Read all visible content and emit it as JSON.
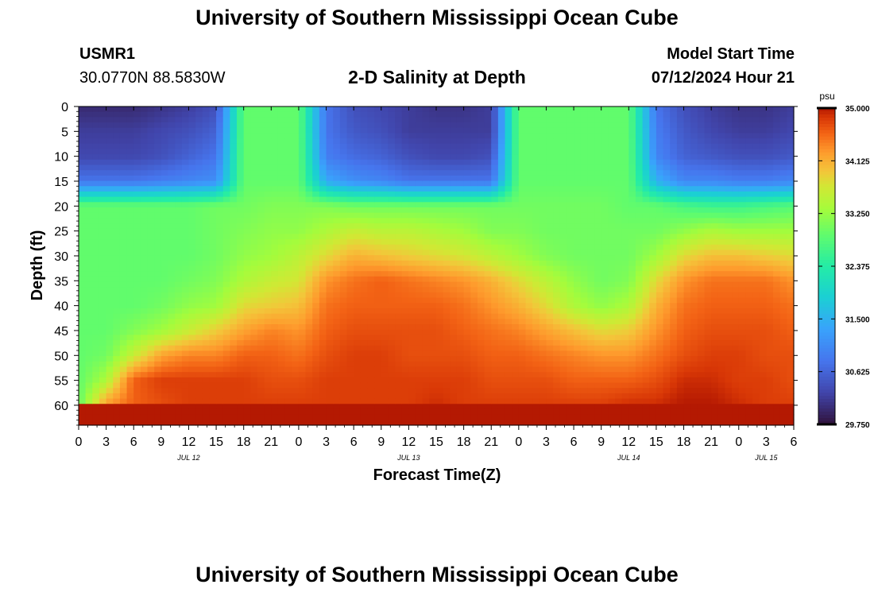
{
  "page": {
    "title": "University of Southern Mississippi Ocean Cube",
    "station_id": "USMR1",
    "location": "30.0770N  88.5830W",
    "chart_title": "2-D Salinity at Depth",
    "model_start_label": "Model Start Time",
    "model_start_value": "07/12/2024 Hour 21",
    "footer_title": "University of Southern Mississippi Ocean Cube"
  },
  "chart_data": {
    "type": "heatmap",
    "title": "2-D Salinity at Depth",
    "xlabel": "Forecast Time(Z)",
    "ylabel": "Depth (ft)",
    "x_unit": "hours since 2024-07-12 00Z",
    "xlim": [
      0,
      78
    ],
    "ylim": [
      0,
      64
    ],
    "x_tick_values": [
      0,
      3,
      6,
      9,
      12,
      15,
      18,
      21,
      24,
      27,
      30,
      33,
      36,
      39,
      42,
      45,
      48,
      51,
      54,
      57,
      60,
      63,
      66,
      69,
      72,
      75,
      78
    ],
    "x_tick_labels": [
      "0",
      "3",
      "6",
      "9",
      "12",
      "15",
      "18",
      "21",
      "0",
      "3",
      "6",
      "9",
      "12",
      "15",
      "18",
      "21",
      "0",
      "3",
      "6",
      "9",
      "12",
      "15",
      "18",
      "21",
      "0",
      "3",
      "6"
    ],
    "date_labels": [
      {
        "hour": 12,
        "text": "JUL 12"
      },
      {
        "hour": 36,
        "text": "JUL 13"
      },
      {
        "hour": 60,
        "text": "JUL 14"
      },
      {
        "hour": 75,
        "text": "JUL 15"
      }
    ],
    "y_tick_values": [
      0,
      5,
      10,
      15,
      20,
      25,
      30,
      35,
      40,
      45,
      50,
      55,
      60
    ],
    "colorbar": {
      "unit": "psu",
      "min": 29.75,
      "max": 35.0,
      "tick_labels": [
        "35.000",
        "34.125",
        "33.250",
        "32.375",
        "31.500",
        "30.625",
        "29.750"
      ],
      "tick_values": [
        35.0,
        34.125,
        33.25,
        32.375,
        31.5,
        30.625,
        29.75
      ]
    },
    "grid": {
      "hours": [
        0,
        3,
        6,
        9,
        12,
        15,
        18,
        21,
        24,
        27,
        30,
        33,
        36,
        39,
        42,
        45,
        48,
        51,
        54,
        57,
        60,
        63,
        66,
        69,
        72,
        75,
        78
      ],
      "depths": [
        0,
        5,
        10,
        15,
        20,
        25,
        30,
        35,
        40,
        45,
        50,
        55,
        60,
        64
      ],
      "salinity": [
        [
          30.0,
          30.2,
          30.3,
          30.8,
          32.9,
          32.9,
          32.9,
          32.9,
          32.9,
          32.9,
          32.9,
          32.9,
          32.9
        ],
        [
          30.0,
          30.2,
          30.3,
          30.8,
          32.9,
          32.9,
          32.9,
          32.9,
          32.9,
          32.9,
          33.0,
          33.4,
          34.3
        ],
        [
          30.0,
          30.2,
          30.3,
          30.8,
          32.9,
          32.9,
          32.9,
          32.9,
          32.9,
          33.1,
          33.6,
          34.6,
          34.6
        ],
        [
          30.1,
          30.3,
          30.4,
          30.9,
          32.9,
          32.9,
          32.9,
          32.9,
          33.0,
          33.3,
          34.2,
          34.8,
          34.7
        ],
        [
          30.2,
          30.4,
          30.6,
          31.0,
          32.9,
          32.9,
          32.9,
          33.0,
          33.2,
          33.6,
          34.4,
          34.8,
          34.8
        ],
        [
          30.4,
          30.6,
          30.8,
          31.1,
          33.0,
          33.0,
          33.0,
          33.1,
          33.3,
          33.9,
          34.4,
          34.8,
          34.8
        ],
        [
          32.9,
          32.9,
          32.9,
          32.9,
          33.0,
          33.1,
          33.2,
          33.4,
          33.8,
          34.2,
          34.6,
          34.8,
          34.8
        ],
        [
          32.9,
          32.9,
          32.9,
          32.9,
          33.1,
          33.2,
          33.3,
          33.6,
          33.9,
          34.4,
          34.6,
          34.7,
          34.8
        ],
        [
          32.9,
          32.9,
          32.9,
          32.9,
          33.1,
          33.2,
          33.5,
          33.7,
          34.0,
          34.3,
          34.5,
          34.7,
          34.8
        ],
        [
          30.8,
          30.8,
          30.9,
          31.4,
          33.1,
          33.4,
          33.8,
          34.3,
          34.5,
          34.6,
          34.7,
          34.8,
          34.8
        ],
        [
          30.4,
          30.5,
          30.7,
          31.1,
          33.0,
          33.6,
          34.1,
          34.5,
          34.6,
          34.7,
          34.8,
          34.8,
          34.8
        ],
        [
          30.3,
          30.4,
          30.6,
          31.0,
          33.0,
          33.5,
          34.0,
          34.6,
          34.6,
          34.7,
          34.8,
          34.8,
          34.8
        ],
        [
          30.2,
          30.2,
          30.4,
          30.8,
          33.0,
          33.5,
          33.9,
          34.5,
          34.6,
          34.7,
          34.7,
          34.8,
          34.8
        ],
        [
          30.1,
          30.2,
          30.3,
          30.8,
          33.0,
          33.4,
          33.8,
          34.4,
          34.6,
          34.7,
          34.7,
          34.8,
          34.9
        ],
        [
          30.1,
          30.2,
          30.3,
          30.8,
          33.0,
          33.3,
          33.7,
          34.3,
          34.5,
          34.6,
          34.7,
          34.8,
          34.8
        ],
        [
          30.2,
          30.2,
          30.4,
          30.8,
          33.0,
          33.1,
          33.5,
          34.1,
          34.3,
          34.5,
          34.6,
          34.7,
          34.8
        ],
        [
          32.9,
          32.9,
          32.9,
          32.9,
          33.0,
          33.1,
          33.3,
          33.8,
          34.1,
          34.4,
          34.6,
          34.7,
          34.8
        ],
        [
          32.9,
          32.9,
          32.9,
          32.9,
          33.0,
          33.0,
          33.1,
          33.5,
          33.8,
          34.2,
          34.5,
          34.7,
          34.8
        ],
        [
          32.9,
          32.9,
          32.9,
          32.9,
          33.0,
          33.0,
          33.0,
          33.2,
          33.4,
          34.0,
          34.4,
          34.6,
          34.8
        ],
        [
          32.9,
          32.9,
          32.9,
          32.9,
          33.0,
          33.0,
          33.0,
          33.0,
          33.2,
          33.8,
          34.3,
          34.6,
          34.8
        ],
        [
          32.9,
          32.9,
          32.9,
          32.9,
          32.9,
          33.0,
          33.0,
          33.1,
          33.4,
          33.9,
          34.3,
          34.6,
          34.9
        ],
        [
          30.8,
          30.9,
          31.0,
          31.5,
          32.9,
          33.0,
          33.3,
          33.8,
          34.1,
          34.3,
          34.5,
          34.7,
          34.9
        ],
        [
          30.4,
          30.5,
          30.6,
          31.0,
          32.7,
          33.2,
          33.8,
          34.3,
          34.5,
          34.6,
          34.7,
          34.9,
          35.0
        ],
        [
          30.2,
          30.3,
          30.5,
          31.0,
          32.6,
          33.4,
          34.0,
          34.5,
          34.6,
          34.7,
          34.8,
          34.9,
          35.0
        ],
        [
          30.1,
          30.2,
          30.4,
          30.9,
          32.6,
          33.3,
          34.0,
          34.5,
          34.6,
          34.7,
          34.8,
          34.8,
          34.9
        ],
        [
          30.1,
          30.2,
          30.4,
          30.9,
          32.7,
          33.3,
          33.9,
          34.5,
          34.6,
          34.7,
          34.7,
          34.8,
          34.8
        ],
        [
          30.2,
          30.3,
          30.5,
          31.0,
          32.8,
          33.3,
          33.8,
          34.3,
          34.5,
          34.6,
          34.7,
          34.7,
          34.8
        ]
      ]
    }
  },
  "colors": {
    "background": "#ffffff",
    "text": "#000000"
  }
}
